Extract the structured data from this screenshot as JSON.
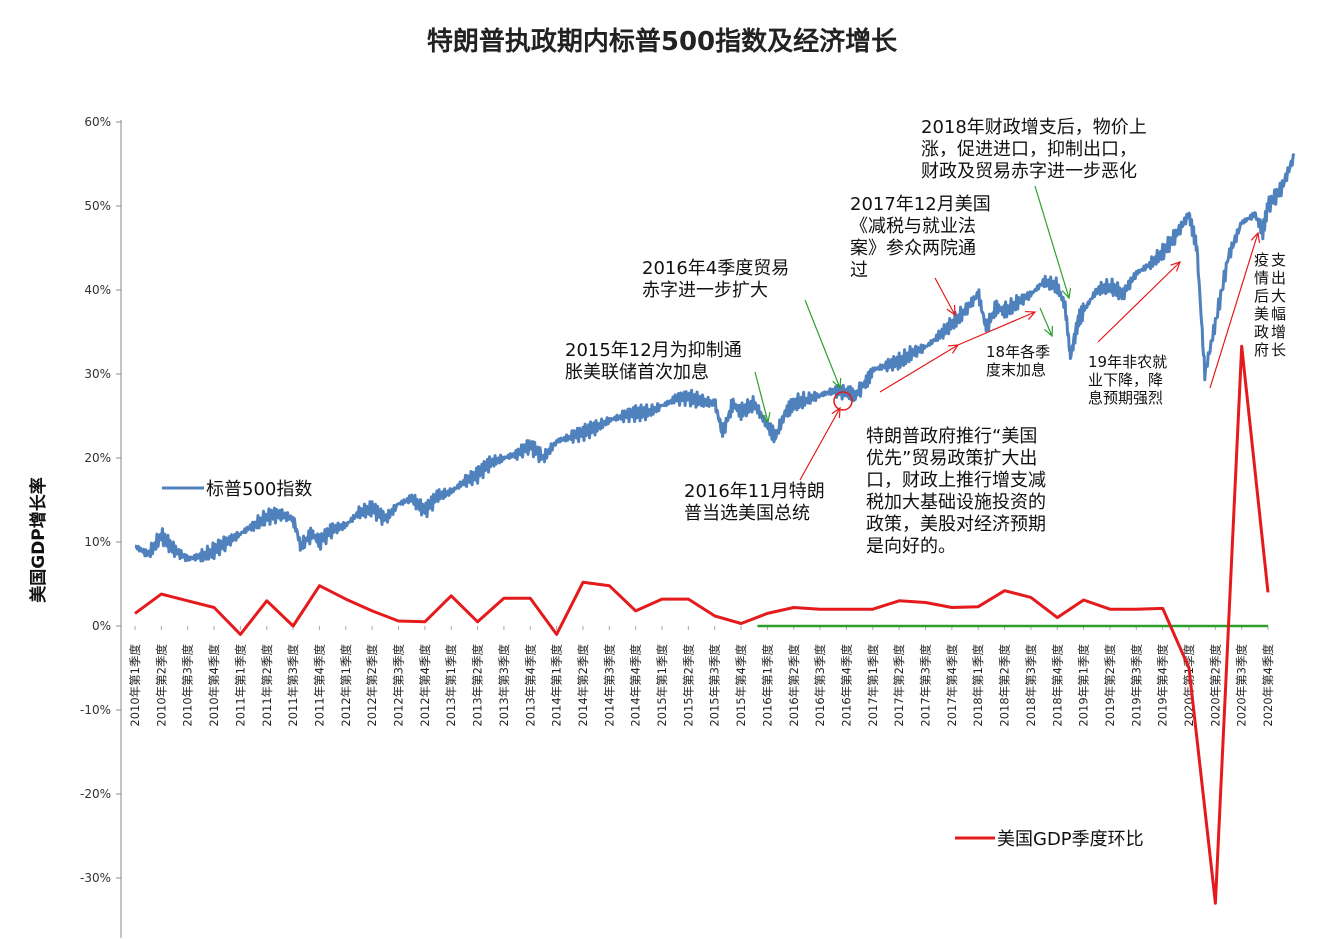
{
  "chart_data": {
    "type": "line",
    "title": "特朗普执政期内标普500指数及经济增长",
    "ylabel": "美国GDP增长率",
    "ylim": [
      -0.35,
      0.6
    ],
    "yticks": [
      {
        "v": 0.6,
        "label": "60%"
      },
      {
        "v": 0.5,
        "label": "50%"
      },
      {
        "v": 0.4,
        "label": "40%"
      },
      {
        "v": 0.3,
        "label": "30%"
      },
      {
        "v": 0.2,
        "label": "20%"
      },
      {
        "v": 0.1,
        "label": "10%"
      },
      {
        "v": 0.0,
        "label": "0%"
      },
      {
        "v": -0.1,
        "label": "-10%"
      },
      {
        "v": -0.2,
        "label": "-20%"
      },
      {
        "v": -0.3,
        "label": "-30%"
      }
    ],
    "categories": [
      "2010年第1季度",
      "2010年第2季度",
      "2010年第3季度",
      "2010年第4季度",
      "2011年第1季度",
      "2011年第2季度",
      "2011年第3季度",
      "2011年第4季度",
      "2012年第1季度",
      "2012年第2季度",
      "2012年第3季度",
      "2012年第4季度",
      "2013年第1季度",
      "2013年第2季度",
      "2013年第3季度",
      "2013年第4季度",
      "2014年第1季度",
      "2014年第2季度",
      "2014年第3季度",
      "2014年第4季度",
      "2015年第1季度",
      "2015年第2季度",
      "2015年第3季度",
      "2015年第4季度",
      "2016年第1季度",
      "2016年第2季度",
      "2016年第3季度",
      "2016年第4季度",
      "2017年第1季度",
      "2017年第2季度",
      "2017年第3季度",
      "2017年第4季度",
      "2018年第1季度",
      "2018年第2季度",
      "2018年第3季度",
      "2018年第4季度",
      "2019年第1季度",
      "2019年第2季度",
      "2019年第3季度",
      "2019年第4季度",
      "2020年第1季度",
      "2020年第2季度",
      "2020年第3季度",
      "2020年第4季度"
    ],
    "series": [
      {
        "name": "标普500指数",
        "color": "#4f81bd",
        "points": [
          [
            0.0,
            0.095
          ],
          [
            0.5,
            0.085
          ],
          [
            1.0,
            0.108
          ],
          [
            1.5,
            0.09
          ],
          [
            2.0,
            0.08
          ],
          [
            2.5,
            0.083
          ],
          [
            3.0,
            0.09
          ],
          [
            3.5,
            0.1
          ],
          [
            4.0,
            0.11
          ],
          [
            4.5,
            0.12
          ],
          [
            5.0,
            0.13
          ],
          [
            5.5,
            0.133
          ],
          [
            6.0,
            0.128
          ],
          [
            6.3,
            0.095
          ],
          [
            6.7,
            0.11
          ],
          [
            7.0,
            0.1
          ],
          [
            7.5,
            0.115
          ],
          [
            8.0,
            0.12
          ],
          [
            8.5,
            0.135
          ],
          [
            9.0,
            0.14
          ],
          [
            9.5,
            0.127
          ],
          [
            10.0,
            0.145
          ],
          [
            10.5,
            0.152
          ],
          [
            11.0,
            0.137
          ],
          [
            11.5,
            0.155
          ],
          [
            12.0,
            0.16
          ],
          [
            12.5,
            0.172
          ],
          [
            13.0,
            0.18
          ],
          [
            13.5,
            0.195
          ],
          [
            14.0,
            0.2
          ],
          [
            14.5,
            0.205
          ],
          [
            15.0,
            0.215
          ],
          [
            15.5,
            0.2
          ],
          [
            16.0,
            0.22
          ],
          [
            16.5,
            0.225
          ],
          [
            17.0,
            0.23
          ],
          [
            17.5,
            0.237
          ],
          [
            18.0,
            0.245
          ],
          [
            18.5,
            0.25
          ],
          [
            19.0,
            0.253
          ],
          [
            19.5,
            0.255
          ],
          [
            20.0,
            0.262
          ],
          [
            20.5,
            0.27
          ],
          [
            21.0,
            0.272
          ],
          [
            21.5,
            0.268
          ],
          [
            22.0,
            0.265
          ],
          [
            22.3,
            0.23
          ],
          [
            22.7,
            0.265
          ],
          [
            23.0,
            0.255
          ],
          [
            23.5,
            0.265
          ],
          [
            24.0,
            0.238
          ],
          [
            24.3,
            0.225
          ],
          [
            24.7,
            0.255
          ],
          [
            25.0,
            0.265
          ],
          [
            25.5,
            0.27
          ],
          [
            26.0,
            0.275
          ],
          [
            26.5,
            0.28
          ],
          [
            27.0,
            0.278
          ],
          [
            27.3,
            0.272
          ],
          [
            27.7,
            0.29
          ],
          [
            28.0,
            0.305
          ],
          [
            28.5,
            0.31
          ],
          [
            29.0,
            0.315
          ],
          [
            29.5,
            0.325
          ],
          [
            30.0,
            0.332
          ],
          [
            30.5,
            0.345
          ],
          [
            31.0,
            0.36
          ],
          [
            31.5,
            0.375
          ],
          [
            32.0,
            0.395
          ],
          [
            32.3,
            0.355
          ],
          [
            32.7,
            0.38
          ],
          [
            33.0,
            0.375
          ],
          [
            33.5,
            0.385
          ],
          [
            34.0,
            0.395
          ],
          [
            34.5,
            0.41
          ],
          [
            35.0,
            0.405
          ],
          [
            35.3,
            0.38
          ],
          [
            35.5,
            0.32
          ],
          [
            35.8,
            0.365
          ],
          [
            36.0,
            0.375
          ],
          [
            36.5,
            0.4
          ],
          [
            37.0,
            0.405
          ],
          [
            37.5,
            0.395
          ],
          [
            38.0,
            0.42
          ],
          [
            38.5,
            0.43
          ],
          [
            39.0,
            0.445
          ],
          [
            39.5,
            0.465
          ],
          [
            40.0,
            0.49
          ],
          [
            40.3,
            0.45
          ],
          [
            40.6,
            0.3
          ],
          [
            41.0,
            0.36
          ],
          [
            41.5,
            0.44
          ],
          [
            42.0,
            0.48
          ],
          [
            42.5,
            0.49
          ],
          [
            42.8,
            0.47
          ],
          [
            43.0,
            0.5
          ],
          [
            43.5,
            0.52
          ],
          [
            44.0,
            0.56
          ]
        ]
      },
      {
        "name": "美国GDP季度环比",
        "color": "#e41a1c",
        "values": [
          0.015,
          0.038,
          0.03,
          0.022,
          -0.01,
          0.03,
          0.0,
          0.048,
          0.032,
          0.018,
          0.006,
          0.005,
          0.036,
          0.005,
          0.033,
          0.033,
          -0.01,
          0.052,
          0.048,
          0.018,
          0.032,
          0.032,
          0.012,
          0.003,
          0.015,
          0.022,
          0.02,
          0.02,
          0.02,
          0.03,
          0.028,
          0.022,
          0.023,
          0.042,
          0.034,
          0.01,
          0.031,
          0.02,
          0.02,
          0.021,
          -0.05,
          -0.33,
          0.333,
          0.04
        ]
      }
    ],
    "baseline": {
      "from": "2016年第1季度",
      "value": 0.0,
      "color": "#2ca02c"
    },
    "annotations": [
      {
        "id": "ann-2015-12",
        "lines": [
          "2015年12月为抑制通",
          "胀美联储首次加息"
        ]
      },
      {
        "id": "ann-2016-q4",
        "lines": [
          "2016年4季度贸易",
          "赤字进一步扩大"
        ]
      },
      {
        "id": "ann-2016-11",
        "lines": [
          "2016年11月特朗",
          "普当选美国总统"
        ]
      },
      {
        "id": "ann-2017-12",
        "lines": [
          "2017年12月美国",
          "《减税与就业法",
          "案》参众两院通",
          "过"
        ]
      },
      {
        "id": "ann-2018",
        "lines": [
          "2018年财政增支后，物价上",
          "涨，促进进口，抑制出口，",
          "财政及贸易赤字进一步恶化"
        ]
      },
      {
        "id": "ann-trump",
        "lines": [
          "特朗普政府推行“美国",
          "优先”贸易政策扩大出",
          "口，财政上推行增支减",
          "税加大基础设施投资的",
          "政策，美股对经济预期",
          "是向好的。"
        ]
      },
      {
        "id": "ann-18q4",
        "lines": [
          "18年各季",
          "度末加息"
        ]
      },
      {
        "id": "ann-19",
        "lines": [
          "19年非农就",
          "业下降，降",
          "息预期强烈"
        ]
      },
      {
        "id": "ann-covid",
        "lines": [
          "疫",
          "情",
          "后",
          "美",
          "政",
          "府",
          "支",
          "出",
          "大",
          "幅",
          "增",
          "长"
        ]
      }
    ],
    "legend": [
      "标普500指数",
      "美国GDP季度环比"
    ],
    "grid": false
  }
}
